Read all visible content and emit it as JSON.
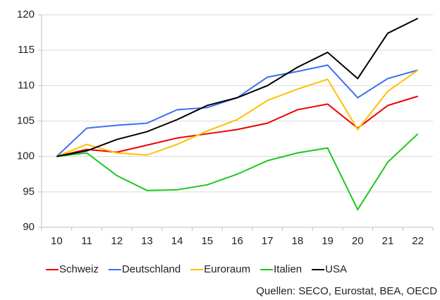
{
  "chart_data": {
    "type": "line",
    "categories": [
      "10",
      "11",
      "12",
      "13",
      "14",
      "15",
      "16",
      "17",
      "18",
      "19",
      "20",
      "21",
      "22"
    ],
    "series": [
      {
        "name": "Schweiz",
        "color": "#ee0000",
        "values": [
          100,
          101,
          100.6,
          101.6,
          102.6,
          103.2,
          103.8,
          104.7,
          106.6,
          107.4,
          104.0,
          107.2,
          108.5
        ]
      },
      {
        "name": "Deutschland",
        "color": "#3d6ef5",
        "values": [
          100,
          104.0,
          104.4,
          104.7,
          106.6,
          106.9,
          108.3,
          111.2,
          112.0,
          112.9,
          108.3,
          111.0,
          112.2
        ]
      },
      {
        "name": "Euroraum",
        "color": "#ffc000",
        "values": [
          100,
          101.7,
          100.5,
          100.2,
          101.7,
          103.6,
          105.2,
          107.9,
          109.5,
          110.9,
          103.8,
          109.2,
          112.2
        ]
      },
      {
        "name": "Italien",
        "color": "#1ec81e",
        "values": [
          100,
          100.5,
          97.3,
          95.2,
          95.3,
          96.0,
          97.5,
          99.4,
          100.5,
          101.2,
          92.5,
          99.2,
          103.2
        ]
      },
      {
        "name": "USA",
        "color": "#000000",
        "values": [
          100,
          100.8,
          102.4,
          103.5,
          105.2,
          107.2,
          108.3,
          110.0,
          112.6,
          114.7,
          111.0,
          117.4,
          119.5
        ]
      }
    ],
    "ylim": [
      90,
      120
    ],
    "yticks": [
      90,
      95,
      100,
      105,
      110,
      115,
      120
    ],
    "grid": true,
    "legend": "bottom",
    "source": "Quellen: SECO, Eurostat, BEA, OECD"
  }
}
